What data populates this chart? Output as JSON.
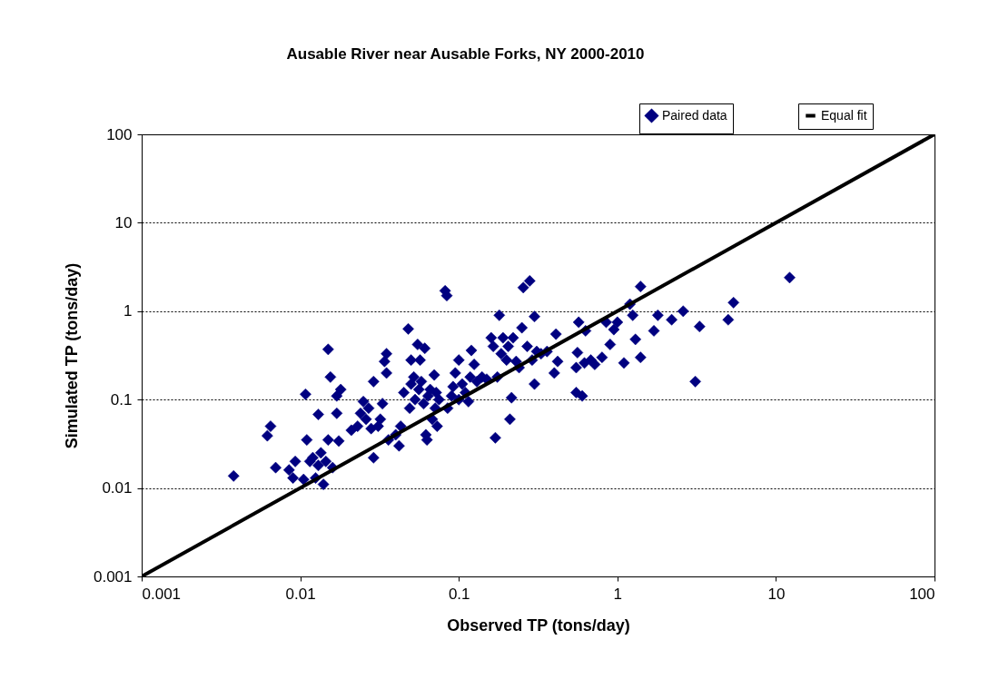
{
  "chart_data": {
    "type": "scatter",
    "title": "Ausable River near Ausable Forks, NY 2000-2010",
    "xlabel": "Observed TP (tons/day)",
    "ylabel": "Simulated TP (tons/day)",
    "log": "xy",
    "xlim": [
      0.001,
      100
    ],
    "ylim": [
      0.001,
      100
    ],
    "xticks": [
      0.001,
      0.01,
      0.1,
      1,
      10,
      100
    ],
    "yticks": [
      0.001,
      0.01,
      0.1,
      1,
      10,
      100
    ],
    "grid": "y",
    "legend": "top right",
    "series": [
      {
        "name": "Paired data",
        "marker": "diamond",
        "color": "#000080",
        "x": [
          0.0038,
          0.0062,
          0.0065,
          0.007,
          0.0085,
          0.009,
          0.0093,
          0.0105,
          0.0108,
          0.011,
          0.0115,
          0.012,
          0.0125,
          0.013,
          0.013,
          0.0135,
          0.014,
          0.0145,
          0.015,
          0.015,
          0.0155,
          0.016,
          0.017,
          0.017,
          0.0175,
          0.018,
          0.021,
          0.023,
          0.024,
          0.025,
          0.026,
          0.027,
          0.028,
          0.029,
          0.029,
          0.031,
          0.032,
          0.033,
          0.034,
          0.035,
          0.035,
          0.036,
          0.04,
          0.042,
          0.043,
          0.045,
          0.048,
          0.049,
          0.05,
          0.05,
          0.052,
          0.053,
          0.055,
          0.056,
          0.057,
          0.058,
          0.06,
          0.061,
          0.062,
          0.063,
          0.064,
          0.066,
          0.068,
          0.07,
          0.071,
          0.072,
          0.073,
          0.075,
          0.082,
          0.084,
          0.085,
          0.09,
          0.092,
          0.095,
          0.1,
          0.1,
          0.105,
          0.11,
          0.115,
          0.118,
          0.12,
          0.125,
          0.13,
          0.14,
          0.15,
          0.16,
          0.165,
          0.17,
          0.175,
          0.18,
          0.185,
          0.19,
          0.2,
          0.205,
          0.21,
          0.215,
          0.22,
          0.23,
          0.24,
          0.25,
          0.255,
          0.27,
          0.28,
          0.29,
          0.3,
          0.3,
          0.31,
          0.33,
          0.36,
          0.4,
          0.41,
          0.42,
          0.55,
          0.55,
          0.56,
          0.57,
          0.6,
          0.62,
          0.63,
          0.68,
          0.72,
          0.8,
          0.85,
          0.9,
          0.95,
          1.0,
          1.1,
          1.2,
          1.25,
          1.3,
          1.4,
          1.4,
          1.7,
          1.8,
          2.2,
          2.6,
          3.1,
          3.3,
          5.0,
          5.4,
          12.2
        ],
        "values": [
          0.0137,
          0.039,
          0.05,
          0.017,
          0.016,
          0.013,
          0.02,
          0.0125,
          0.115,
          0.035,
          0.02,
          0.022,
          0.013,
          0.018,
          0.068,
          0.025,
          0.011,
          0.02,
          0.37,
          0.035,
          0.18,
          0.017,
          0.07,
          0.11,
          0.034,
          0.13,
          0.045,
          0.05,
          0.07,
          0.095,
          0.06,
          0.08,
          0.047,
          0.022,
          0.16,
          0.05,
          0.06,
          0.09,
          0.27,
          0.33,
          0.2,
          0.035,
          0.04,
          0.03,
          0.05,
          0.12,
          0.63,
          0.08,
          0.15,
          0.28,
          0.18,
          0.1,
          0.42,
          0.13,
          0.28,
          0.16,
          0.09,
          0.38,
          0.04,
          0.035,
          0.11,
          0.13,
          0.06,
          0.19,
          0.08,
          0.12,
          0.05,
          0.1,
          1.7,
          1.5,
          0.08,
          0.11,
          0.14,
          0.2,
          0.1,
          0.28,
          0.15,
          0.12,
          0.095,
          0.18,
          0.36,
          0.25,
          0.16,
          0.18,
          0.17,
          0.5,
          0.4,
          0.037,
          0.18,
          0.9,
          0.33,
          0.5,
          0.28,
          0.4,
          0.06,
          0.105,
          0.5,
          0.27,
          0.23,
          0.65,
          1.85,
          0.4,
          2.2,
          0.28,
          0.15,
          0.87,
          0.35,
          0.33,
          0.35,
          0.2,
          0.55,
          0.27,
          0.12,
          0.23,
          0.34,
          0.75,
          0.11,
          0.26,
          0.6,
          0.28,
          0.25,
          0.3,
          0.75,
          0.42,
          0.62,
          0.75,
          0.26,
          1.2,
          0.9,
          0.48,
          1.9,
          0.3,
          0.6,
          0.9,
          0.8,
          1.0,
          0.16,
          0.67,
          0.8,
          1.25,
          2.4
        ]
      },
      {
        "name": "Equal fit",
        "type": "line",
        "color": "#000000",
        "x": [
          0.001,
          100
        ],
        "values": [
          0.001,
          100
        ]
      }
    ]
  }
}
